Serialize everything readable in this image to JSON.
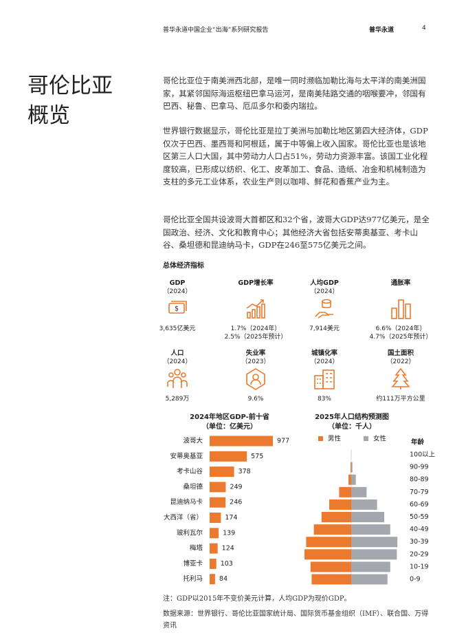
{
  "header": {
    "report_title": "普华永道中国企业“出海”系列研究报告",
    "brand": "普华永道",
    "page_number": "4"
  },
  "section": {
    "title_lines": [
      "哥伦比亚",
      "概览"
    ],
    "paragraphs": [
      "哥伦比亚位于南美洲西北部，是唯一同时濒临加勒比海与太平洋的南美洲国家，其紧邻国际海运枢纽巴拿马运河，是南美陆路交通的咽喉要冲，邻国有巴西、秘鲁、巴拿马、厄瓜多尔和委内瑞拉。",
      "世界银行数据显示，哥伦比亚是拉丁美洲与加勒比地区第四大经济体，GDP仅次于巴西、墨西哥和阿根廷，属于中等偏上收入国家。哥伦比亚也是该地区第三人口大国，其中劳动力人口占51%，劳动力资源丰富。该国工业化程度较高，已形成以纺织、化工、皮革加工、食品、造纸、冶金和机械制造为支柱的多元工业体系，农业生产则以咖啡、鲜花和香蕉产业为主。",
      "哥伦比亚全国共设波哥大首都区和32个省，波哥大GDP达977亿美元，是全国政治、经济、文化和教育中心；其他经济大省包括安蒂奥基亚、考卡山谷、桑坦德和昆迪纳马卡，GDP在246至575亿美元之间。"
    ]
  },
  "indicators": {
    "heading": "总体经济指标",
    "items": [
      {
        "label": "GDP",
        "sub": "（2024）",
        "value_lines": [
          "3,635亿美元"
        ]
      },
      {
        "label": "GDP增长率",
        "value_lines": [
          "1.7%（2024年）",
          "2.5%（2025年预计）"
        ]
      },
      {
        "label": "人均GDP",
        "sub": "（2024）",
        "value_lines": [
          "7,914美元"
        ]
      },
      {
        "label": "通胀率",
        "value_lines": [
          "6.6%（2024年）",
          "4.7%（2025年预计）"
        ]
      },
      {
        "label": "人口",
        "sub": "（2024）",
        "value_lines": [
          "5,289万"
        ]
      },
      {
        "label": "失业率",
        "sub": "（2023）",
        "value_lines": [
          "9.6%"
        ]
      },
      {
        "label": "城镇化率",
        "sub": "（2024）",
        "value_lines": [
          "83%"
        ]
      },
      {
        "label": "国土面积",
        "sub": "（2022）",
        "value_lines": [
          "约111万平方公里"
        ]
      }
    ]
  },
  "chart_data": [
    {
      "type": "hbar",
      "title": "2024年地区GDP-前十省",
      "subtitle": "（单位：亿美元）",
      "color": "#eb7a2e",
      "categories": [
        "波哥大",
        "安蒂奥基亚",
        "考卡山谷",
        "桑坦德",
        "昆迪纳马卡",
        "大西洋（省）",
        "玻利瓦尔",
        "梅塔",
        "博亚卡",
        "托利马"
      ],
      "values": [
        977,
        575,
        378,
        249,
        246,
        174,
        139,
        124,
        103,
        84
      ]
    },
    {
      "type": "pyramid",
      "title": "2025年人口结构预测图",
      "subtitle": "（单位：千人）",
      "category_title": "年龄",
      "categories": [
        "100以上",
        "90-99",
        "80-89",
        "70-79",
        "60-69",
        "50-59",
        "40-49",
        "30-39",
        "20-29",
        "10-19",
        "0-9"
      ],
      "series": [
        {
          "name": "男性",
          "color": "#eb7a2e",
          "values": [
            5,
            60,
            250,
            1100,
            2000,
            2700,
            3400,
            4100,
            4250,
            3700,
            3600
          ]
        },
        {
          "name": "女性",
          "color": "#a3a7ae",
          "values": [
            10,
            110,
            420,
            1400,
            2350,
            3000,
            3550,
            4200,
            4150,
            3550,
            3300
          ]
        }
      ]
    }
  ],
  "footnotes": {
    "note": "注：GDP以2015年不变价美元计算，人均GDP为现价GDP。",
    "source": "数据来源：世界银行、哥伦比亚国家统计局、国际货币基金组织（IMF）、联合国、万得资讯"
  }
}
